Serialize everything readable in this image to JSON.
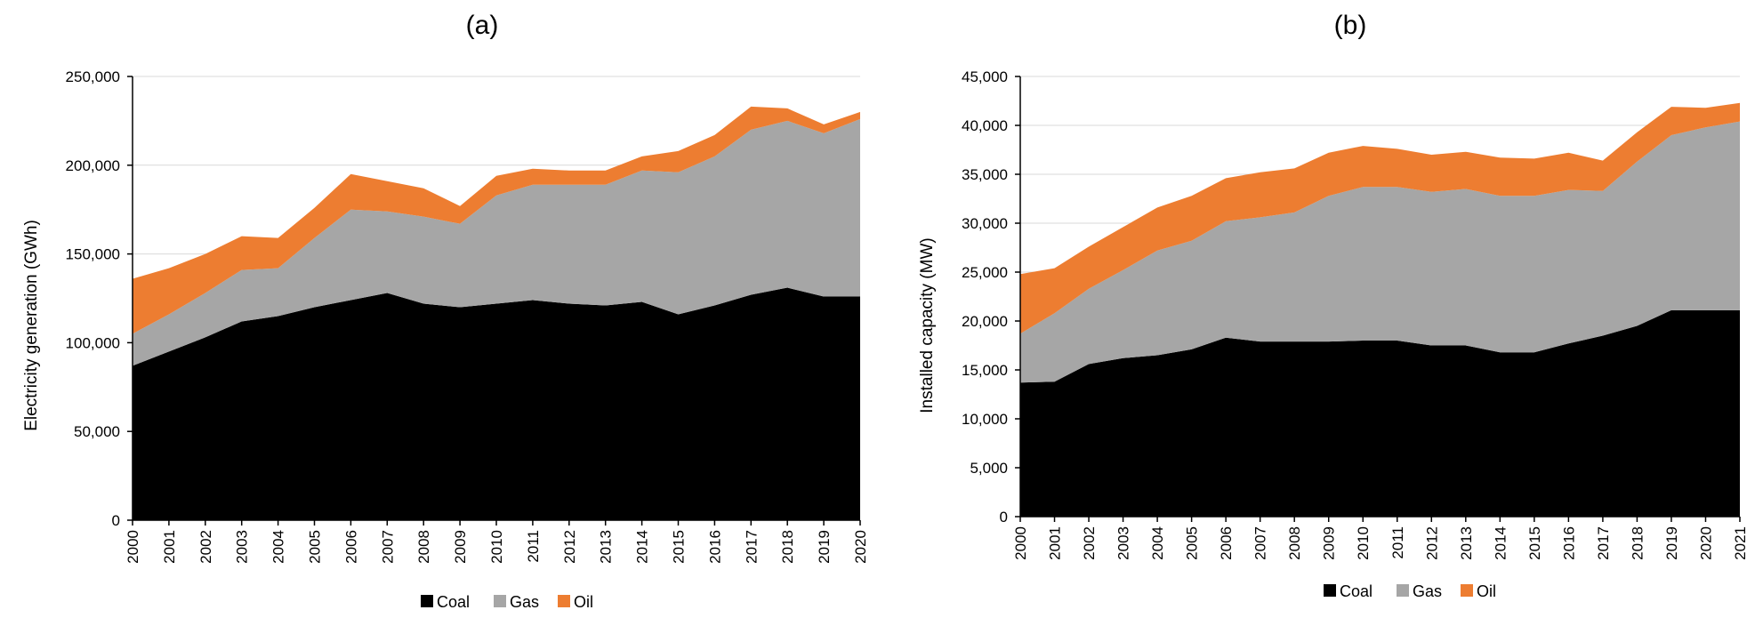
{
  "chart_data": [
    {
      "type": "area",
      "stacked": true,
      "title": "(a)",
      "xlabel": "",
      "ylabel": "Electricity generation (GWh)",
      "ylim": [
        0,
        250000
      ],
      "yticks": [
        0,
        50000,
        100000,
        150000,
        200000,
        250000
      ],
      "ytick_labels": [
        "0",
        "50,000",
        "100,000",
        "150,000",
        "200,000",
        "250,000"
      ],
      "grid": true,
      "legend_position": "bottom",
      "categories": [
        "2000",
        "2001",
        "2002",
        "2003",
        "2004",
        "2005",
        "2006",
        "2007",
        "2008",
        "2009",
        "2010",
        "2011",
        "2012",
        "2013",
        "2014",
        "2015",
        "2016",
        "2017",
        "2018",
        "2019",
        "2020"
      ],
      "series": [
        {
          "name": "Coal",
          "color": "#000000",
          "values": [
            87000,
            95000,
            103000,
            112000,
            115000,
            120000,
            124000,
            128000,
            122000,
            120000,
            122000,
            124000,
            122000,
            121000,
            123000,
            116000,
            121000,
            127000,
            131000,
            126000,
            126000
          ]
        },
        {
          "name": "Gas",
          "color": "#a6a6a6",
          "values": [
            18000,
            21000,
            25000,
            29000,
            27000,
            39000,
            51000,
            46000,
            49000,
            47000,
            61000,
            65000,
            67000,
            68000,
            74000,
            80000,
            84000,
            93000,
            94000,
            92000,
            100000
          ]
        },
        {
          "name": "Oil",
          "color": "#ed7d31",
          "values": [
            31000,
            26000,
            22000,
            19000,
            17000,
            17000,
            20000,
            17000,
            16000,
            10000,
            11000,
            9000,
            8000,
            8000,
            8000,
            12000,
            12000,
            13000,
            7000,
            5000,
            4000
          ]
        }
      ]
    },
    {
      "type": "area",
      "stacked": true,
      "title": "(b)",
      "xlabel": "",
      "ylabel": "Installed capacity (MW)",
      "ylim": [
        0,
        45000
      ],
      "yticks": [
        0,
        5000,
        10000,
        15000,
        20000,
        25000,
        30000,
        35000,
        40000,
        45000
      ],
      "ytick_labels": [
        "0",
        "5,000",
        "10,000",
        "15,000",
        "20,000",
        "25,000",
        "30,000",
        "35,000",
        "40,000",
        "45,000"
      ],
      "grid": true,
      "legend_position": "bottom",
      "categories": [
        "2000",
        "2001",
        "2002",
        "2003",
        "2004",
        "2005",
        "2006",
        "2007",
        "2008",
        "2009",
        "2010",
        "2011",
        "2012",
        "2013",
        "2014",
        "2015",
        "2016",
        "2017",
        "2018",
        "2019",
        "2020",
        "2021"
      ],
      "series": [
        {
          "name": "Coal",
          "color": "#000000",
          "values": [
            13700,
            13800,
            15600,
            16200,
            16500,
            17100,
            18300,
            17900,
            17900,
            17900,
            18000,
            18000,
            17500,
            17500,
            16800,
            16800,
            17700,
            18500,
            19500,
            21100,
            21100,
            21100
          ]
        },
        {
          "name": "Gas",
          "color": "#a6a6a6",
          "values": [
            5000,
            7000,
            7700,
            9000,
            10700,
            11100,
            11900,
            12700,
            13200,
            14900,
            15700,
            15700,
            15700,
            16000,
            16000,
            16000,
            15700,
            14800,
            16800,
            17900,
            18700,
            19300
          ]
        },
        {
          "name": "Oil",
          "color": "#ed7d31",
          "values": [
            6100,
            4600,
            4300,
            4400,
            4400,
            4600,
            4400,
            4600,
            4500,
            4400,
            4200,
            3900,
            3800,
            3800,
            3900,
            3800,
            3800,
            3100,
            3000,
            2900,
            2000,
            1900
          ]
        }
      ]
    }
  ]
}
